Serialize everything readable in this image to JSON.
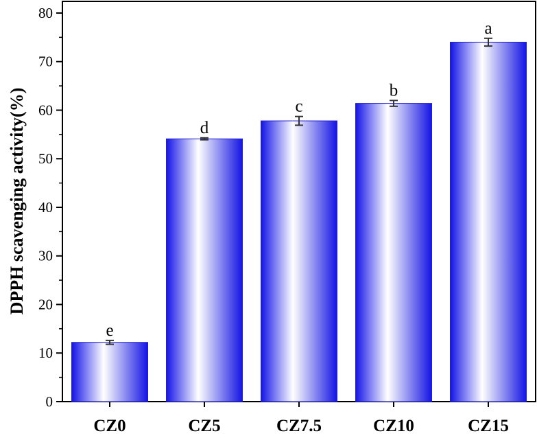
{
  "chart_data": {
    "type": "bar",
    "categories": [
      "CZ0",
      "CZ5",
      "CZ7.5",
      "CZ10",
      "CZ15"
    ],
    "values": [
      12.2,
      54.1,
      57.8,
      61.4,
      74.0
    ],
    "errors": [
      0.4,
      0.2,
      0.9,
      0.6,
      0.8
    ],
    "significance_letters": [
      "e",
      "d",
      "c",
      "b",
      "a"
    ],
    "ylabel": "DPPH scavenging activity(%)",
    "xlabel": "",
    "ylim": [
      0,
      80
    ],
    "yticks": [
      0,
      10,
      20,
      30,
      40,
      50,
      60,
      70,
      80
    ],
    "grid": false,
    "colors": {
      "bar_edge": "#1414e6",
      "bar_center": "#ffffff",
      "axis": "#000000",
      "error_bar": "#333333"
    }
  }
}
